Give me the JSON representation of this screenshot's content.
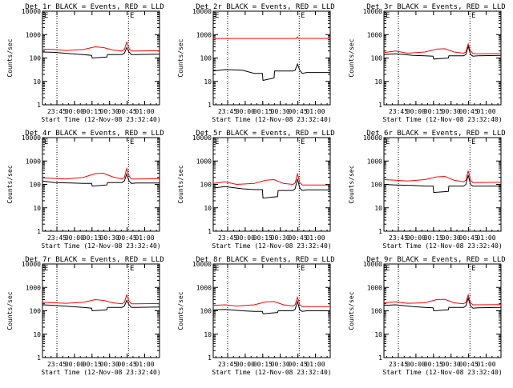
{
  "page": {
    "background": "#ffffff"
  },
  "colors": {
    "events": "#000000",
    "lld": "#ff0000",
    "axis": "#000000"
  },
  "common": {
    "xlabel": "Start Time (12-Nov-08 23:32:40)",
    "ylabel": "Counts/sec",
    "y_ticks": [
      1,
      10,
      100,
      1000,
      10000
    ],
    "y_tick_labels": [
      "1",
      "10",
      "100",
      "1000",
      "10000"
    ],
    "x_tick_labels": [
      "23:45",
      "00:00",
      "00:15",
      "00:30",
      "00:45",
      "01:00"
    ],
    "x_ticks_min": [
      12.33,
      27.33,
      42.33,
      57.33,
      72.33,
      87.33
    ],
    "x_range_min": [
      0,
      100
    ],
    "dotted_lines_min": [
      12.33,
      73.5
    ],
    "marker_label": "E",
    "marker_at_min": 74
  },
  "chart_data": [
    {
      "type": "line",
      "title": "Det 1r BLACK = Events, RED = LLD",
      "ylim": [
        1,
        10000
      ],
      "scale": "log",
      "series": [
        {
          "name": "Events",
          "x": [
            0,
            10,
            25,
            35,
            42,
            42.5,
            55,
            55.5,
            68,
            70,
            72,
            74,
            76,
            80,
            100
          ],
          "y": [
            180,
            175,
            150,
            140,
            130,
            100,
            110,
            140,
            140,
            160,
            280,
            180,
            140,
            140,
            145
          ]
        },
        {
          "name": "LLD",
          "x": [
            0,
            10,
            20,
            35,
            45,
            52,
            60,
            68,
            70,
            72,
            74,
            76,
            80,
            100
          ],
          "y": [
            240,
            230,
            210,
            230,
            300,
            280,
            220,
            200,
            230,
            480,
            250,
            200,
            200,
            205
          ]
        }
      ]
    },
    {
      "type": "line",
      "title": "Det 2r BLACK = Events, RED = LLD",
      "ylim": [
        1,
        10000
      ],
      "scale": "log",
      "series": [
        {
          "name": "Events",
          "x": [
            0,
            10,
            25,
            35,
            42,
            42.5,
            52,
            52.5,
            68,
            70,
            72,
            74,
            76,
            80,
            100
          ],
          "y": [
            28,
            32,
            30,
            22,
            22,
            11,
            14,
            28,
            28,
            30,
            55,
            30,
            22,
            24,
            24
          ]
        },
        {
          "name": "LLD",
          "x": [
            0,
            71,
            72,
            73,
            100
          ],
          "y": [
            680,
            680,
            780,
            690,
            690
          ]
        }
      ]
    },
    {
      "type": "line",
      "title": "Det 3r BLACK = Events, RED = LLD",
      "ylim": [
        1,
        10000
      ],
      "scale": "log",
      "series": [
        {
          "name": "Events",
          "x": [
            0,
            10,
            25,
            35,
            42,
            42.5,
            55,
            55.5,
            68,
            70,
            72,
            74,
            76,
            80,
            100
          ],
          "y": [
            140,
            150,
            130,
            125,
            120,
            90,
            100,
            125,
            125,
            140,
            320,
            140,
            120,
            125,
            130
          ]
        },
        {
          "name": "LLD",
          "x": [
            0,
            10,
            20,
            35,
            45,
            52,
            60,
            68,
            70,
            72,
            74,
            76,
            80,
            100
          ],
          "y": [
            170,
            200,
            160,
            180,
            240,
            250,
            180,
            160,
            180,
            400,
            200,
            155,
            150,
            155
          ]
        }
      ]
    },
    {
      "type": "line",
      "title": "Det 4r BLACK = Events, RED = LLD",
      "ylim": [
        1,
        10000
      ],
      "scale": "log",
      "series": [
        {
          "name": "Events",
          "x": [
            0,
            10,
            25,
            35,
            42,
            42.5,
            55,
            55.5,
            68,
            70,
            72,
            74,
            76,
            80,
            100
          ],
          "y": [
            140,
            120,
            115,
            110,
            110,
            85,
            95,
            120,
            120,
            140,
            280,
            140,
            110,
            115,
            115
          ]
        },
        {
          "name": "LLD",
          "x": [
            0,
            10,
            20,
            35,
            45,
            52,
            60,
            68,
            70,
            72,
            74,
            76,
            80,
            100
          ],
          "y": [
            190,
            180,
            170,
            200,
            290,
            300,
            210,
            170,
            200,
            480,
            230,
            170,
            170,
            175
          ]
        }
      ]
    },
    {
      "type": "line",
      "title": "Det 5r BLACK = Events, RED = LLD",
      "ylim": [
        1,
        10000
      ],
      "scale": "log",
      "series": [
        {
          "name": "Events",
          "x": [
            0,
            10,
            25,
            35,
            42,
            42.5,
            55,
            55.5,
            68,
            70,
            72,
            74,
            76,
            80,
            100
          ],
          "y": [
            70,
            80,
            65,
            60,
            60,
            26,
            30,
            55,
            55,
            65,
            170,
            70,
            55,
            58,
            58
          ]
        },
        {
          "name": "LLD",
          "x": [
            0,
            10,
            20,
            35,
            45,
            52,
            60,
            68,
            70,
            72,
            74,
            76,
            80,
            100
          ],
          "y": [
            110,
            130,
            100,
            110,
            150,
            160,
            110,
            100,
            115,
            280,
            120,
            95,
            95,
            95
          ]
        }
      ]
    },
    {
      "type": "line",
      "title": "Det 6r BLACK = Events, RED = LLD",
      "ylim": [
        1,
        10000
      ],
      "scale": "log",
      "series": [
        {
          "name": "Events",
          "x": [
            0,
            10,
            25,
            35,
            42,
            42.5,
            55,
            55.5,
            68,
            70,
            72,
            74,
            76,
            80,
            100
          ],
          "y": [
            100,
            95,
            90,
            85,
            85,
            45,
            50,
            85,
            85,
            100,
            250,
            100,
            85,
            85,
            85
          ]
        },
        {
          "name": "LLD",
          "x": [
            0,
            10,
            20,
            35,
            45,
            52,
            60,
            68,
            70,
            72,
            74,
            76,
            80,
            100
          ],
          "y": [
            160,
            150,
            140,
            160,
            210,
            220,
            150,
            130,
            150,
            380,
            150,
            120,
            120,
            125
          ]
        }
      ]
    },
    {
      "type": "line",
      "title": "Det 7r BLACK = Events, RED = LLD",
      "ylim": [
        1,
        10000
      ],
      "scale": "log",
      "series": [
        {
          "name": "Events",
          "x": [
            0,
            10,
            25,
            35,
            42,
            42.5,
            55,
            55.5,
            68,
            70,
            72,
            74,
            76,
            80,
            100
          ],
          "y": [
            180,
            170,
            150,
            140,
            130,
            100,
            110,
            140,
            140,
            160,
            280,
            180,
            140,
            140,
            145
          ]
        },
        {
          "name": "LLD",
          "x": [
            0,
            10,
            20,
            35,
            45,
            52,
            60,
            68,
            70,
            72,
            74,
            76,
            80,
            100
          ],
          "y": [
            230,
            220,
            210,
            230,
            300,
            280,
            220,
            200,
            230,
            480,
            250,
            200,
            200,
            205
          ]
        }
      ]
    },
    {
      "type": "line",
      "title": "Det 8r BLACK = Events, RED = LLD",
      "ylim": [
        1,
        10000
      ],
      "scale": "log",
      "series": [
        {
          "name": "Events",
          "x": [
            0,
            10,
            25,
            35,
            42,
            42.5,
            55,
            55.5,
            68,
            70,
            72,
            74,
            76,
            80,
            100
          ],
          "y": [
            110,
            115,
            100,
            95,
            95,
            75,
            85,
            100,
            100,
            115,
            250,
            110,
            95,
            100,
            100
          ]
        },
        {
          "name": "LLD",
          "x": [
            0,
            10,
            20,
            35,
            45,
            52,
            60,
            68,
            70,
            72,
            74,
            76,
            80,
            100
          ],
          "y": [
            170,
            180,
            160,
            180,
            240,
            250,
            180,
            160,
            180,
            380,
            180,
            150,
            150,
            150
          ]
        }
      ]
    },
    {
      "type": "line",
      "title": "Det 9r BLACK = Events, RED = LLD",
      "ylim": [
        1,
        10000
      ],
      "scale": "log",
      "series": [
        {
          "name": "Events",
          "x": [
            0,
            10,
            25,
            35,
            42,
            42.5,
            55,
            55.5,
            68,
            70,
            72,
            74,
            76,
            80,
            100
          ],
          "y": [
            170,
            180,
            150,
            140,
            135,
            100,
            110,
            140,
            140,
            160,
            350,
            160,
            130,
            135,
            140
          ]
        },
        {
          "name": "LLD",
          "x": [
            0,
            10,
            20,
            35,
            45,
            52,
            60,
            68,
            70,
            72,
            74,
            76,
            80,
            100
          ],
          "y": [
            220,
            240,
            210,
            220,
            300,
            310,
            220,
            200,
            230,
            480,
            220,
            180,
            180,
            185
          ]
        }
      ]
    }
  ]
}
